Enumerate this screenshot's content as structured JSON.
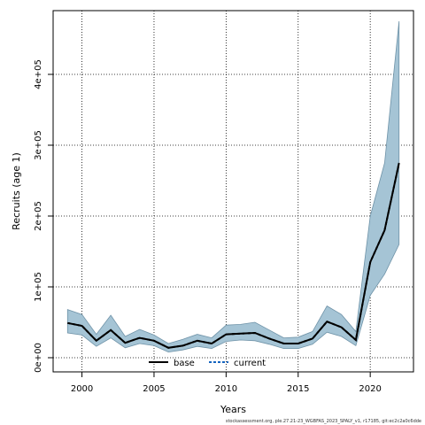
{
  "chart_data": {
    "type": "line",
    "title": "",
    "xlabel": "Years",
    "ylabel": "Recruits (age 1)",
    "xlim": [
      1998,
      2023
    ],
    "ylim": [
      -20000,
      490000
    ],
    "x_ticks": [
      2000,
      2005,
      2010,
      2015,
      2020
    ],
    "x_tick_labels": [
      "2000",
      "2005",
      "2010",
      "2015",
      "2020"
    ],
    "y_ticks": [
      0,
      100000,
      200000,
      300000,
      400000
    ],
    "y_tick_labels": [
      "0e+00",
      "1e+05",
      "2e+05",
      "3e+05",
      "4e+05"
    ],
    "grid": true,
    "legend_placement": "bottom",
    "x": [
      1999,
      2000,
      2001,
      2002,
      2003,
      2004,
      2005,
      2006,
      2007,
      2008,
      2009,
      2010,
      2011,
      2012,
      2013,
      2014,
      2015,
      2016,
      2017,
      2018,
      2019,
      2020,
      2021,
      2022
    ],
    "series": [
      {
        "name": "base",
        "style": "solid",
        "color": "#000000",
        "values": [
          49000,
          45000,
          24000,
          39000,
          21000,
          28000,
          24000,
          14000,
          17000,
          24000,
          20000,
          33000,
          34000,
          35000,
          27000,
          20000,
          20000,
          27000,
          51000,
          43000,
          25000,
          135000,
          180000,
          275000
        ]
      },
      {
        "name": "current",
        "style": "dashed",
        "color": "#1565c0",
        "values": [
          49000,
          45000,
          24000,
          39000,
          21000,
          28000,
          24000,
          14000,
          17000,
          24000,
          20000,
          33000,
          34000,
          35000,
          27000,
          20000,
          20000,
          27000,
          51000,
          43000,
          25000,
          135000,
          180000,
          275000
        ]
      }
    ],
    "band": {
      "color": "#a5c4d5",
      "lower": [
        35000,
        32000,
        16000,
        28000,
        14000,
        20000,
        17000,
        8000,
        11000,
        16000,
        13000,
        23000,
        25000,
        24000,
        19000,
        13000,
        13000,
        19000,
        36000,
        30000,
        17000,
        88000,
        118000,
        160000
      ],
      "upper": [
        68000,
        61000,
        33000,
        60000,
        30000,
        40000,
        32000,
        20000,
        26000,
        33000,
        28000,
        46000,
        47000,
        50000,
        39000,
        28000,
        29000,
        37000,
        73000,
        61000,
        37000,
        200000,
        275000,
        475000
      ]
    }
  },
  "footer": "stockassessment.org, ple.27.21-23_WGBFAS_2023_SPALY_v1, r17185, git:ec2c2a0c6dde"
}
